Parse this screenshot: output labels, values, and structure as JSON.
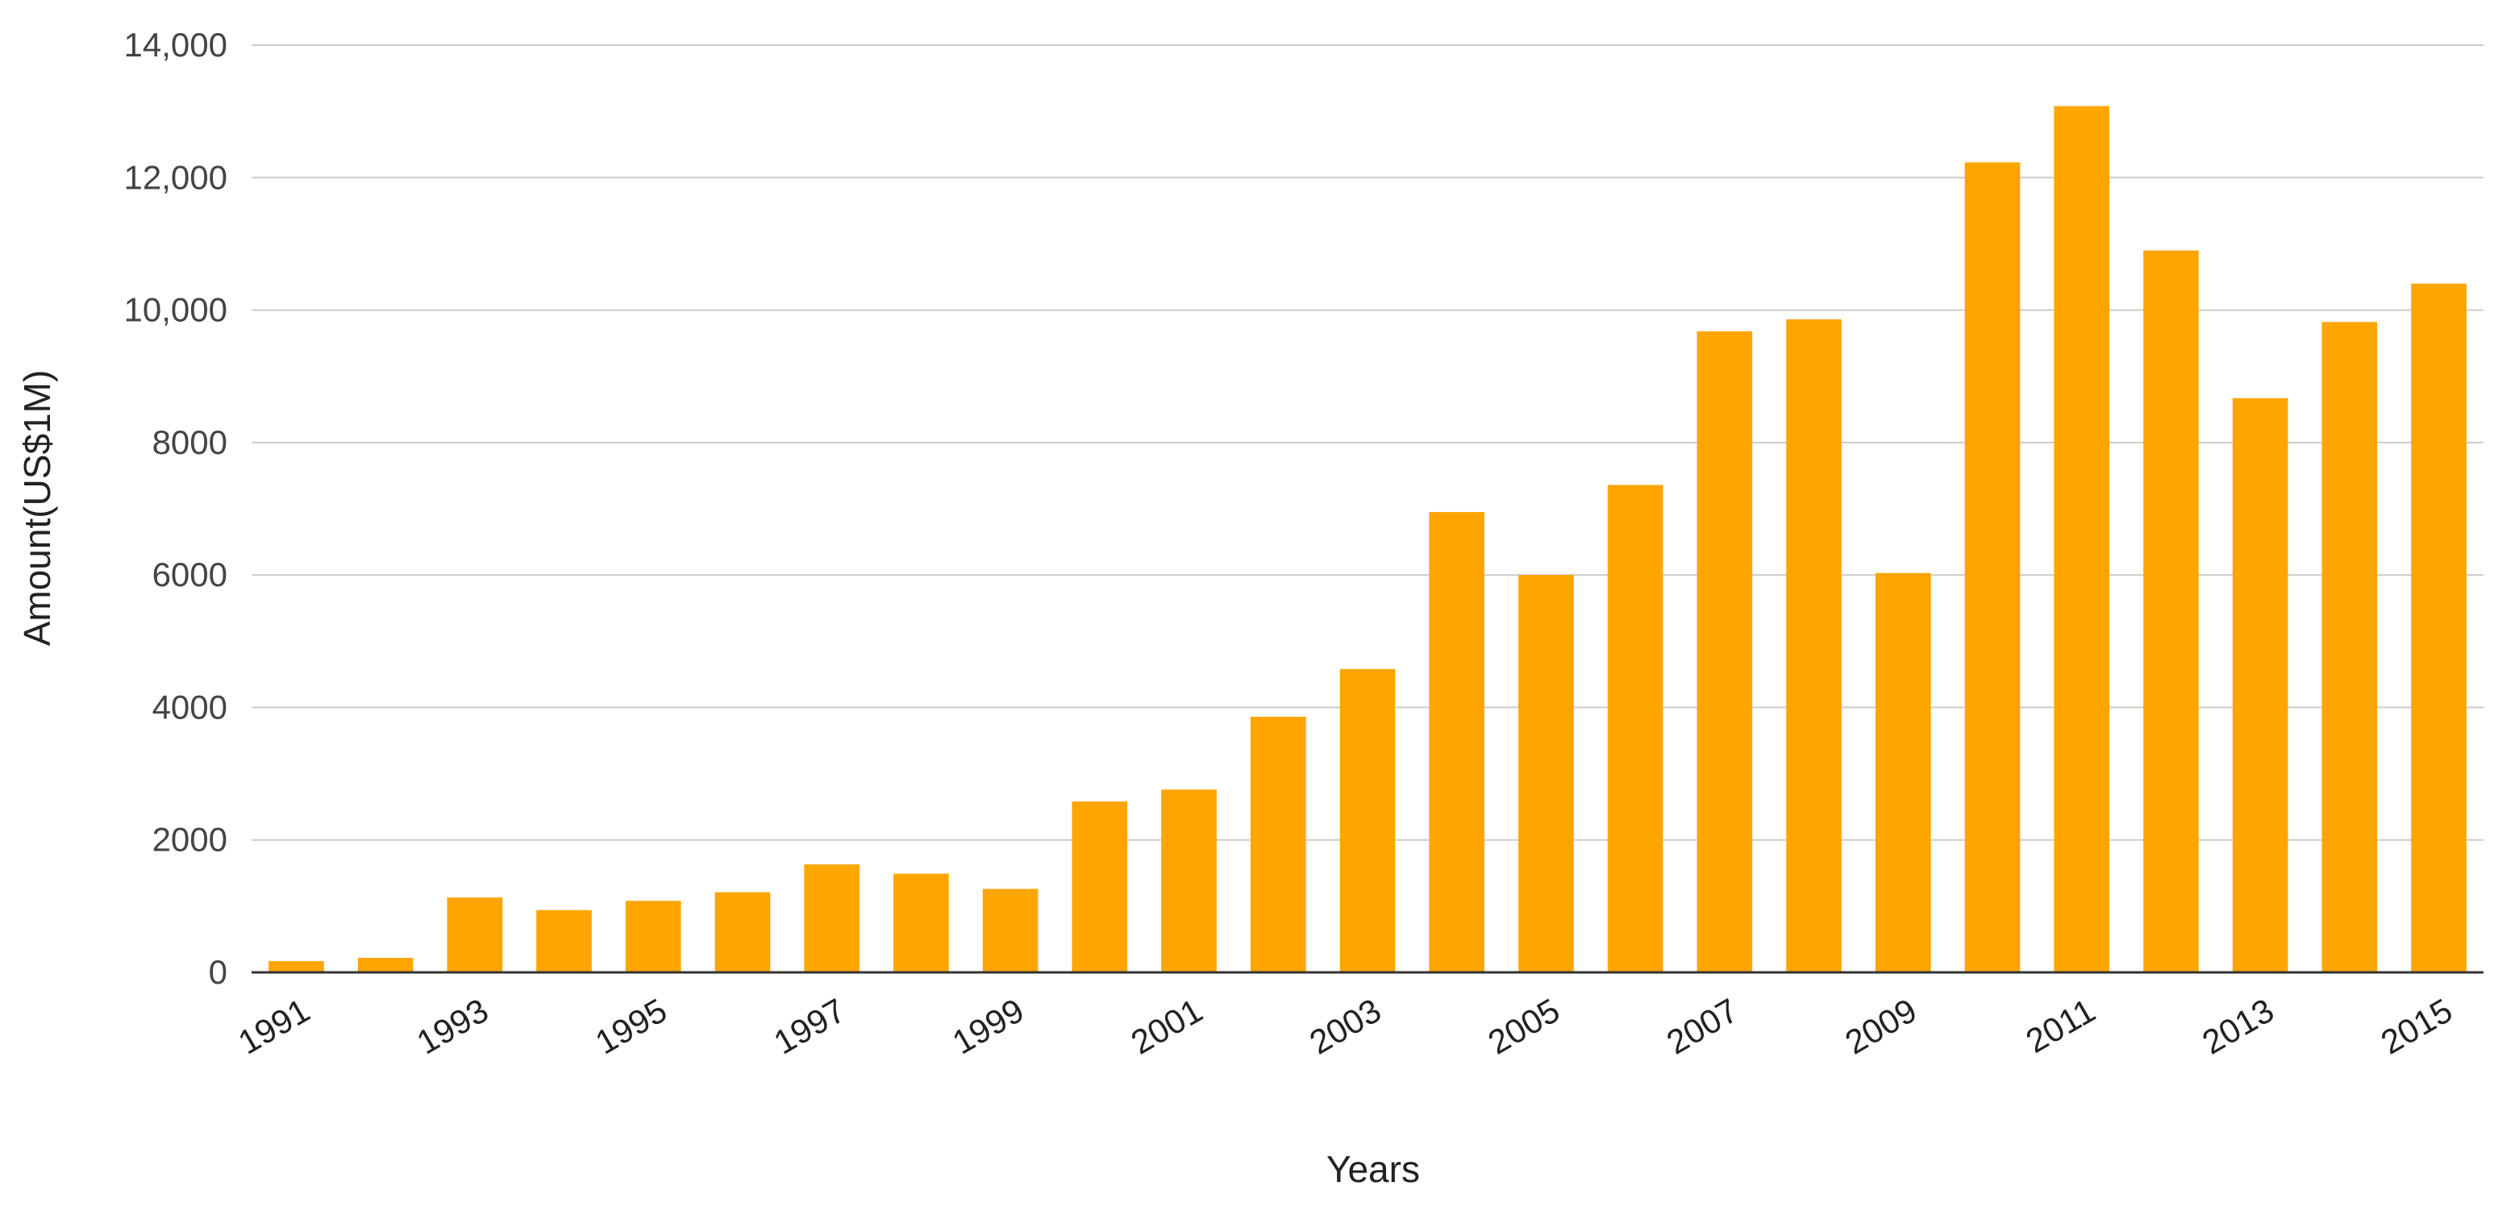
{
  "chart_data": {
    "type": "bar",
    "title": "",
    "xlabel": "Years",
    "ylabel": "Amount(US$1M)",
    "categories": [
      "1991",
      "1992",
      "1993",
      "1994",
      "1995",
      "1996",
      "1997",
      "1998",
      "1999",
      "2000",
      "2001",
      "2002",
      "2003",
      "2004",
      "2005",
      "2006",
      "2007",
      "2008",
      "2009",
      "2010",
      "2011",
      "2012",
      "2013",
      "2014",
      "2015"
    ],
    "x_tick_labels_shown": [
      "1991",
      "1993",
      "1995",
      "1997",
      "1999",
      "2001",
      "2003",
      "2005",
      "2007",
      "2009",
      "2011",
      "2013",
      "2015"
    ],
    "values": [
      170,
      220,
      1130,
      940,
      1080,
      1210,
      1630,
      1490,
      1260,
      2580,
      2760,
      3860,
      4580,
      6950,
      6000,
      7360,
      9680,
      9860,
      6030,
      12230,
      13080,
      10900,
      8670,
      9820,
      10400
    ],
    "ylim": [
      0,
      14000
    ],
    "y_ticks": [
      0,
      2000,
      4000,
      6000,
      8000,
      10000,
      12000,
      14000
    ],
    "y_tick_labels": [
      "0",
      "2000",
      "4000",
      "6000",
      "8000",
      "10,000",
      "12,000",
      "14,000"
    ],
    "grid": true,
    "legend": "none",
    "colors": {
      "bar": "#FFA500",
      "grid": "#cccccc",
      "baseline": "#333333"
    }
  }
}
